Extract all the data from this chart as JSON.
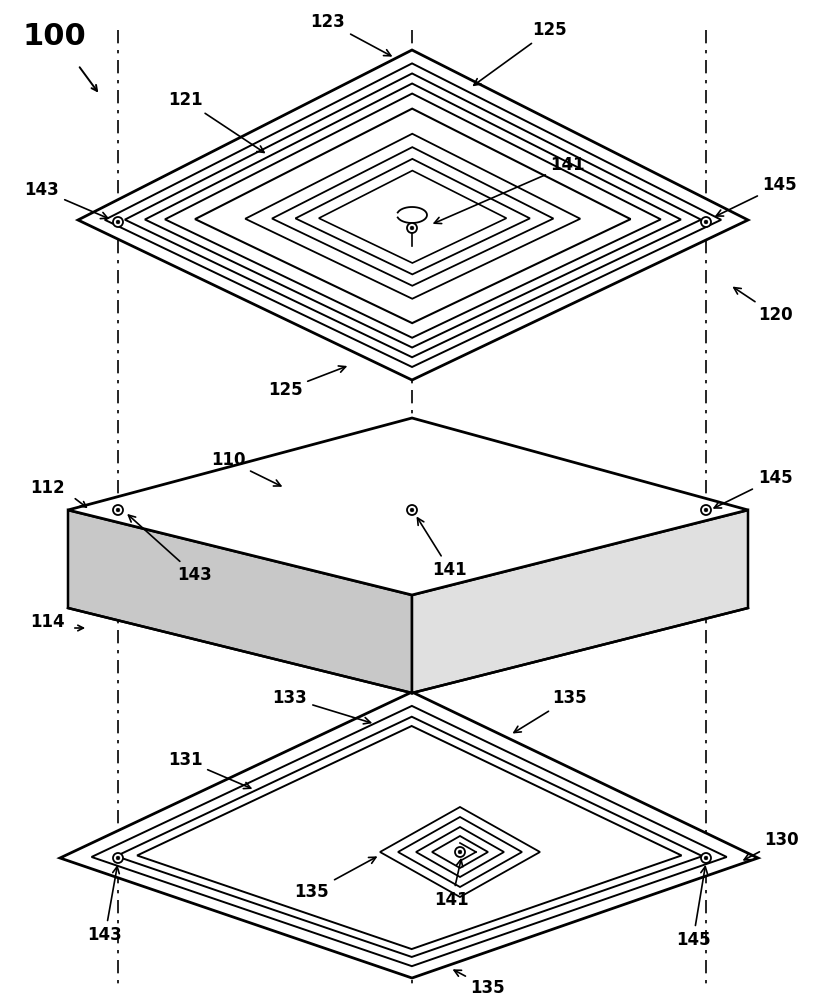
{
  "labels": {
    "100": "100",
    "110": "110",
    "112": "112",
    "114": "114",
    "120": "120",
    "121": "121",
    "123": "123",
    "125": "125",
    "130": "130",
    "131": "131",
    "133": "133",
    "135": "135",
    "141": "141",
    "143": "143",
    "145": "145"
  },
  "lc": "#000000",
  "bg": "#ffffff",
  "gray_top": "#f5f5f5",
  "gray_side_left": "#c8c8c8",
  "gray_side_right": "#e0e0e0",
  "gray_bot_face": "#f0f0f0"
}
